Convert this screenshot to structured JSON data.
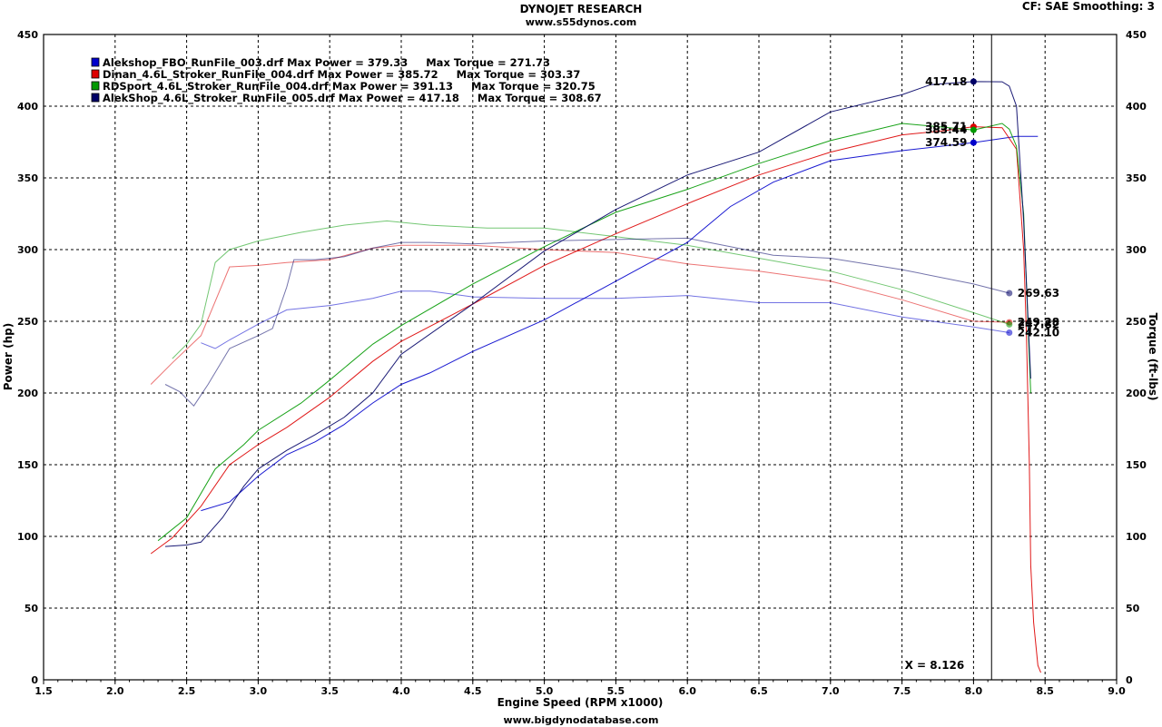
{
  "header": {
    "title": "DYNOJET RESEARCH",
    "site": "www.s55dynos.com",
    "settings": "CF: SAE  Smoothing: 3",
    "footer": "www.bigdynodatabase.com"
  },
  "chart_data": {
    "type": "line",
    "xlabel": "Engine Speed (RPM x1000)",
    "ylabel": "Power (hp)",
    "y2label": "Torque (ft-lbs)",
    "xlim": [
      1.5,
      9.0
    ],
    "ylim": [
      0,
      450
    ],
    "y2lim": [
      0,
      450
    ],
    "xticks": [
      "1.5",
      "2.0",
      "2.5",
      "3.0",
      "3.5",
      "4.0",
      "4.5",
      "5.0",
      "5.5",
      "6.0",
      "6.5",
      "7.0",
      "7.5",
      "8.0",
      "8.5",
      "9.0"
    ],
    "yticks": [
      "0",
      "50",
      "100",
      "150",
      "200",
      "250",
      "300",
      "350",
      "400",
      "450"
    ],
    "grid": true,
    "legend_position": "top-left",
    "cursor": {
      "x": 8.126,
      "label": "X = 8.126"
    },
    "series": [
      {
        "name": "Alekshop_FBO_RunFile_003.drf",
        "color": "#0000cc",
        "legend": "Alekshop_FBO_RunFile_003.drf Max Power = 379.33     Max Torque = 271.73",
        "power": [
          [
            2.6,
            118
          ],
          [
            2.8,
            124
          ],
          [
            3.0,
            142
          ],
          [
            3.2,
            157
          ],
          [
            3.4,
            166
          ],
          [
            3.6,
            178
          ],
          [
            3.8,
            193
          ],
          [
            4.0,
            206
          ],
          [
            4.2,
            214
          ],
          [
            4.5,
            229
          ],
          [
            5.0,
            251
          ],
          [
            5.5,
            278
          ],
          [
            6.0,
            305
          ],
          [
            6.3,
            330
          ],
          [
            6.6,
            347
          ],
          [
            7.0,
            362
          ],
          [
            7.5,
            369
          ],
          [
            8.0,
            374.59
          ],
          [
            8.3,
            379
          ],
          [
            8.45,
            379
          ]
        ],
        "torque": [
          [
            2.6,
            235
          ],
          [
            2.7,
            231
          ],
          [
            2.8,
            237
          ],
          [
            3.0,
            248
          ],
          [
            3.2,
            258
          ],
          [
            3.5,
            261
          ],
          [
            3.8,
            266
          ],
          [
            4.0,
            271
          ],
          [
            4.2,
            271
          ],
          [
            4.5,
            267
          ],
          [
            5.0,
            266
          ],
          [
            5.5,
            266
          ],
          [
            6.0,
            268
          ],
          [
            6.5,
            263
          ],
          [
            7.0,
            263
          ],
          [
            7.5,
            253
          ],
          [
            8.0,
            246
          ],
          [
            8.25,
            242.1
          ]
        ],
        "power_marker": {
          "x": 8.0,
          "value": "374.59"
        },
        "torque_marker": {
          "x": 8.25,
          "value": "242.10"
        }
      },
      {
        "name": "Dinan_4.6L_Stroker_RunFile_004.drf",
        "color": "#dd0000",
        "legend": "Dinan_4.6L_Stroker_RunFile_004.drf Max Power = 385.72     Max Torque = 303.37",
        "power": [
          [
            2.25,
            88
          ],
          [
            2.4,
            99
          ],
          [
            2.6,
            121
          ],
          [
            2.8,
            150
          ],
          [
            3.0,
            164
          ],
          [
            3.2,
            176
          ],
          [
            3.5,
            197
          ],
          [
            3.8,
            222
          ],
          [
            4.0,
            236
          ],
          [
            4.5,
            262
          ],
          [
            5.0,
            289
          ],
          [
            5.5,
            311
          ],
          [
            6.0,
            332
          ],
          [
            6.5,
            352
          ],
          [
            7.0,
            368
          ],
          [
            7.5,
            380
          ],
          [
            7.8,
            383
          ],
          [
            8.0,
            385.71
          ],
          [
            8.2,
            385
          ],
          [
            8.3,
            370
          ],
          [
            8.35,
            300
          ],
          [
            8.37,
            240
          ],
          [
            8.39,
            150
          ],
          [
            8.4,
            80
          ],
          [
            8.42,
            40
          ],
          [
            8.45,
            10
          ],
          [
            8.47,
            5
          ]
        ],
        "torque": [
          [
            2.25,
            206
          ],
          [
            2.4,
            221
          ],
          [
            2.6,
            240
          ],
          [
            2.8,
            288
          ],
          [
            3.0,
            289
          ],
          [
            3.2,
            291
          ],
          [
            3.5,
            293
          ],
          [
            3.8,
            301
          ],
          [
            4.0,
            303
          ],
          [
            4.5,
            303
          ],
          [
            5.0,
            300
          ],
          [
            5.5,
            298
          ],
          [
            6.0,
            290
          ],
          [
            6.5,
            285
          ],
          [
            7.0,
            278
          ],
          [
            7.5,
            265
          ],
          [
            8.0,
            250
          ],
          [
            8.25,
            249.28
          ]
        ],
        "power_marker": {
          "x": 8.0,
          "value": "385.71"
        },
        "torque_marker": {
          "x": 8.25,
          "value": "249.28"
        }
      },
      {
        "name": "RDSport_4.6L_Stroker_RunFile_004.drf",
        "color": "#009900",
        "legend": "RDSport_4.6L_Stroker_RunFile_004.drf Max Power = 391.13     Max Torque = 320.75",
        "power": [
          [
            2.3,
            97
          ],
          [
            2.5,
            113
          ],
          [
            2.7,
            147
          ],
          [
            2.9,
            164
          ],
          [
            3.0,
            174
          ],
          [
            3.3,
            193
          ],
          [
            3.5,
            209
          ],
          [
            3.8,
            234
          ],
          [
            4.0,
            247
          ],
          [
            4.5,
            276
          ],
          [
            5.0,
            302
          ],
          [
            5.5,
            326
          ],
          [
            6.0,
            342
          ],
          [
            6.5,
            360
          ],
          [
            7.0,
            376
          ],
          [
            7.5,
            388
          ],
          [
            8.0,
            383.44
          ],
          [
            8.2,
            388
          ],
          [
            8.25,
            384
          ],
          [
            8.3,
            372
          ],
          [
            8.35,
            325
          ],
          [
            8.4,
            200
          ]
        ],
        "torque": [
          [
            2.4,
            224
          ],
          [
            2.5,
            234
          ],
          [
            2.6,
            248
          ],
          [
            2.7,
            291
          ],
          [
            2.8,
            300
          ],
          [
            3.0,
            306
          ],
          [
            3.3,
            312
          ],
          [
            3.6,
            317
          ],
          [
            3.9,
            320
          ],
          [
            4.2,
            317
          ],
          [
            4.6,
            315
          ],
          [
            5.0,
            315
          ],
          [
            5.5,
            309
          ],
          [
            6.0,
            303
          ],
          [
            6.5,
            294
          ],
          [
            7.0,
            285
          ],
          [
            7.5,
            272
          ],
          [
            8.0,
            256
          ],
          [
            8.25,
            247.82
          ]
        ],
        "power_marker": {
          "x": 8.0,
          "value": "383.44"
        },
        "torque_marker": {
          "x": 8.25,
          "value": "247.82"
        }
      },
      {
        "name": "AlekShop_4.6L_Stroker_RunFile_005.drf",
        "color": "#000066",
        "legend": "AlekShop_4.6L_Stroker_RunFile_005.drf Max Power = 417.18     Max Torque = 308.67",
        "power": [
          [
            2.35,
            93
          ],
          [
            2.5,
            94
          ],
          [
            2.6,
            96
          ],
          [
            2.75,
            113
          ],
          [
            2.9,
            135
          ],
          [
            3.0,
            147
          ],
          [
            3.2,
            160
          ],
          [
            3.4,
            171
          ],
          [
            3.6,
            183
          ],
          [
            3.8,
            200
          ],
          [
            4.0,
            227
          ],
          [
            4.5,
            262
          ],
          [
            5.0,
            299
          ],
          [
            5.5,
            328
          ],
          [
            6.0,
            352
          ],
          [
            6.5,
            368
          ],
          [
            7.0,
            396
          ],
          [
            7.5,
            408
          ],
          [
            7.7,
            415
          ],
          [
            8.0,
            417.18
          ],
          [
            8.2,
            417
          ],
          [
            8.25,
            414
          ],
          [
            8.3,
            400
          ],
          [
            8.35,
            320
          ],
          [
            8.4,
            210
          ]
        ],
        "torque": [
          [
            2.35,
            206
          ],
          [
            2.45,
            201
          ],
          [
            2.55,
            191
          ],
          [
            2.65,
            206
          ],
          [
            2.8,
            231
          ],
          [
            3.0,
            240
          ],
          [
            3.1,
            245
          ],
          [
            3.2,
            274
          ],
          [
            3.25,
            293
          ],
          [
            3.4,
            293
          ],
          [
            3.6,
            295
          ],
          [
            3.8,
            301
          ],
          [
            4.0,
            305
          ],
          [
            4.2,
            305
          ],
          [
            4.5,
            304
          ],
          [
            5.0,
            306
          ],
          [
            5.5,
            307
          ],
          [
            6.0,
            308
          ],
          [
            6.3,
            302
          ],
          [
            6.6,
            296
          ],
          [
            7.0,
            294
          ],
          [
            7.5,
            286
          ],
          [
            8.0,
            276
          ],
          [
            8.25,
            269.63
          ]
        ],
        "power_marker": {
          "x": 8.0,
          "value": "417.18"
        },
        "torque_marker": {
          "x": 8.25,
          "value": "269.63"
        }
      }
    ]
  }
}
